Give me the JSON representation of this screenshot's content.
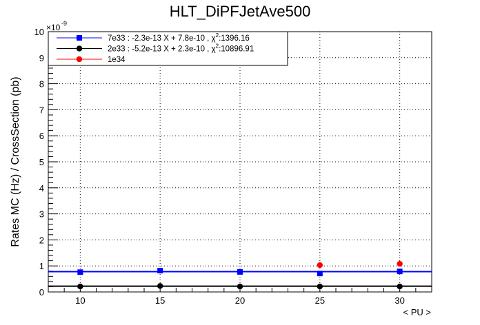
{
  "chart_data": {
    "type": "scatter",
    "title": "HLT_DiPFJetAve500",
    "xlabel": "< PU >",
    "ylabel": "Rates MC (Hz) / CrossSection (pb)",
    "y_exponent_label": "×10",
    "y_exponent_power": "-9",
    "xlim": [
      8,
      32
    ],
    "ylim": [
      0,
      10
    ],
    "y_scale_note": "y values in units of 1e-9",
    "x_ticks": [
      10,
      15,
      20,
      25,
      30
    ],
    "y_ticks": [
      0,
      1,
      2,
      3,
      4,
      5,
      6,
      7,
      8,
      9,
      10
    ],
    "grid": true,
    "legend_placement": "top-left",
    "series": [
      {
        "name": "7e33 : -2.3e-13 X + 7.8e-10 , χ²:1396.16",
        "legend_text": "7e33 : -2.3e-13 X + 7.8e-10 , χ",
        "legend_sup": "2",
        "legend_tail": ":1396.16",
        "color": "#0000ff",
        "marker": "square",
        "x": [
          10,
          15,
          20,
          25,
          30
        ],
        "y": [
          0.76,
          0.82,
          0.77,
          0.71,
          0.79
        ],
        "fit": [
          0.78,
          0.78
        ]
      },
      {
        "name": "2e33 : -5.2e-13 X + 2.3e-10 , χ²:10896.91",
        "legend_text": "2e33 : -5.2e-13 X + 2.3e-10 , χ",
        "legend_sup": "2",
        "legend_tail": ":10896.91",
        "color": "#000000",
        "marker": "circle",
        "x": [
          10,
          15,
          20,
          25,
          30
        ],
        "y": [
          0.21,
          0.23,
          0.21,
          0.21,
          0.21
        ],
        "fit": [
          0.22,
          0.22
        ]
      },
      {
        "name": "1e34",
        "legend_text": "1e34",
        "legend_sup": "",
        "legend_tail": "",
        "color": "#ff0000",
        "marker": "circle",
        "x": [
          25,
          30
        ],
        "y": [
          1.03,
          1.08
        ],
        "fit": null
      }
    ]
  }
}
